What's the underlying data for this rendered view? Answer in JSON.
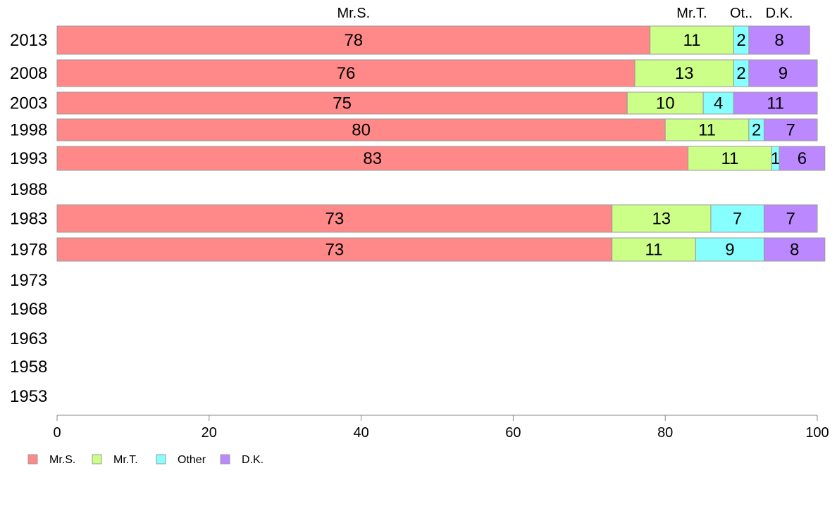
{
  "chart_data": {
    "type": "bar",
    "orientation": "horizontal",
    "stacked": true,
    "title": "",
    "xlabel": "",
    "ylabel": "",
    "xlim": [
      0,
      100
    ],
    "x_ticks": [
      0,
      20,
      40,
      60,
      80,
      100
    ],
    "grid": false,
    "categories": [
      "2013",
      "2008",
      "2003",
      "1998",
      "1993",
      "1988",
      "1983",
      "1978",
      "1973",
      "1968",
      "1963",
      "1958",
      "1953"
    ],
    "series": [
      {
        "name": "Mr.S.",
        "color": "#ff8888",
        "values": [
          78,
          76,
          75,
          80,
          83,
          null,
          73,
          73,
          null,
          null,
          null,
          null,
          null
        ]
      },
      {
        "name": "Mr.T.",
        "color": "#ccff88",
        "values": [
          11,
          13,
          10,
          11,
          11,
          null,
          13,
          11,
          null,
          null,
          null,
          null,
          null
        ]
      },
      {
        "name": "Other",
        "color": "#88ffff",
        "values": [
          2,
          2,
          4,
          2,
          1,
          null,
          7,
          9,
          null,
          null,
          null,
          null,
          null
        ]
      },
      {
        "name": "D.K.",
        "color": "#bb88ff",
        "values": [
          8,
          9,
          11,
          7,
          6,
          null,
          7,
          8,
          null,
          null,
          null,
          null,
          null
        ]
      }
    ],
    "top_labels": [
      "Mr.S.",
      "Mr.T.",
      "Ot..",
      "D.K."
    ],
    "legend_position": "bottom-left"
  }
}
